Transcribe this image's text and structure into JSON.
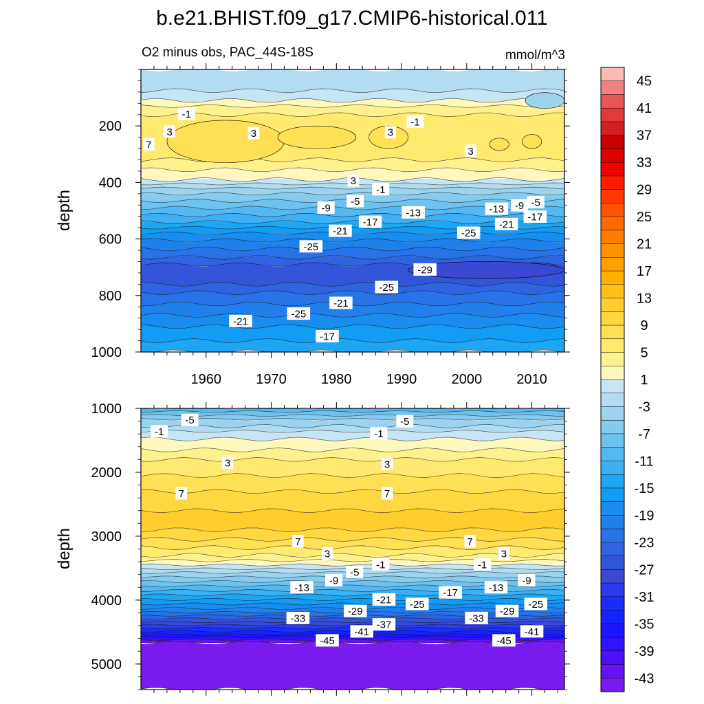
{
  "figure": {
    "title": "b.e21.BHIST.f09_g17.CMIP6-historical.011",
    "subtitle_left": "O2 minus obs, PAC_44S-18S",
    "subtitle_right": "mmol/m^3"
  },
  "chart_data": [
    {
      "type": "heatmap",
      "panel": "upper",
      "ylabel": "depth",
      "ylim": [
        1000,
        0
      ],
      "yticks": [
        200,
        400,
        600,
        800,
        1000
      ],
      "xlim": [
        1950,
        2015
      ],
      "xticks": [
        1960,
        1970,
        1980,
        1990,
        2000,
        2010
      ],
      "bands": [
        {
          "d0": 0,
          "d1": 75,
          "v": -3
        },
        {
          "d0": 75,
          "d1": 110,
          "v": -1
        },
        {
          "d0": 110,
          "d1": 130,
          "v": 1
        },
        {
          "d0": 130,
          "d1": 160,
          "v": 3
        },
        {
          "d0": 160,
          "d1": 320,
          "v": 5
        },
        {
          "d0": 320,
          "d1": 355,
          "v": 3
        },
        {
          "d0": 355,
          "d1": 390,
          "v": 1
        },
        {
          "d0": 390,
          "d1": 405,
          "v": -1
        },
        {
          "d0": 405,
          "d1": 420,
          "v": -3
        },
        {
          "d0": 420,
          "d1": 440,
          "v": -5
        },
        {
          "d0": 440,
          "d1": 465,
          "v": -7
        },
        {
          "d0": 465,
          "d1": 490,
          "v": -9
        },
        {
          "d0": 490,
          "d1": 515,
          "v": -11
        },
        {
          "d0": 515,
          "d1": 540,
          "v": -13
        },
        {
          "d0": 540,
          "d1": 560,
          "v": -15
        },
        {
          "d0": 560,
          "d1": 580,
          "v": -17
        },
        {
          "d0": 580,
          "d1": 605,
          "v": -19
        },
        {
          "d0": 605,
          "d1": 635,
          "v": -21
        },
        {
          "d0": 635,
          "d1": 665,
          "v": -23
        },
        {
          "d0": 665,
          "d1": 690,
          "v": -25
        },
        {
          "d0": 690,
          "d1": 760,
          "v": -27
        },
        {
          "d0": 760,
          "d1": 790,
          "v": -25
        },
        {
          "d0": 790,
          "d1": 830,
          "v": -23
        },
        {
          "d0": 830,
          "d1": 870,
          "v": -21
        },
        {
          "d0": 870,
          "d1": 910,
          "v": -19
        },
        {
          "d0": 910,
          "d1": 960,
          "v": -17
        },
        {
          "d0": 960,
          "d1": 1000,
          "v": -15
        }
      ],
      "blobs": [
        {
          "x": 1963,
          "d": 255,
          "rx": 9,
          "rd": 75,
          "v": 7
        },
        {
          "x": 1977,
          "d": 240,
          "rx": 6,
          "rd": 40,
          "v": 7
        },
        {
          "x": 1988,
          "d": 240,
          "rx": 3,
          "rd": 40,
          "v": 7
        },
        {
          "x": 2005,
          "d": 265,
          "rx": 1.5,
          "rd": 22,
          "v": 7
        },
        {
          "x": 2010,
          "d": 255,
          "rx": 1.5,
          "rd": 25,
          "v": 7
        },
        {
          "x": 2003,
          "d": 710,
          "rx": 12,
          "rd": 30,
          "v": -29
        },
        {
          "x": 2012,
          "d": 110,
          "rx": 3,
          "rd": 28,
          "v": -5
        }
      ],
      "labels": [
        {
          "text": "-1",
          "x": 1957,
          "d": 157
        },
        {
          "text": "3",
          "x": 1954.4,
          "d": 220
        },
        {
          "text": "7",
          "x": 1951.2,
          "d": 265
        },
        {
          "text": "3",
          "x": 1967.3,
          "d": 225
        },
        {
          "text": "-1",
          "x": 1992.1,
          "d": 185
        },
        {
          "text": "3",
          "x": 1988.3,
          "d": 222
        },
        {
          "text": "3",
          "x": 2000.6,
          "d": 288
        },
        {
          "text": "3",
          "x": 1982.6,
          "d": 393
        },
        {
          "text": "-1",
          "x": 1986.8,
          "d": 424
        },
        {
          "text": "-5",
          "x": 1982.9,
          "d": 466
        },
        {
          "text": "-9",
          "x": 1978.4,
          "d": 489
        },
        {
          "text": "-13",
          "x": 1991.8,
          "d": 506
        },
        {
          "text": "-17",
          "x": 1985.2,
          "d": 539
        },
        {
          "text": "-21",
          "x": 1980.6,
          "d": 571
        },
        {
          "text": "-25",
          "x": 1976.1,
          "d": 626
        },
        {
          "text": "-13",
          "x": 2004.6,
          "d": 493
        },
        {
          "text": "-9",
          "x": 2008.1,
          "d": 481
        },
        {
          "text": "-5",
          "x": 2010.6,
          "d": 470
        },
        {
          "text": "-17",
          "x": 2010.5,
          "d": 521
        },
        {
          "text": "-21",
          "x": 2006.1,
          "d": 547
        },
        {
          "text": "-25",
          "x": 2000.3,
          "d": 578
        },
        {
          "text": "-29",
          "x": 1993.6,
          "d": 708
        },
        {
          "text": "-25",
          "x": 1987.7,
          "d": 770
        },
        {
          "text": "-21",
          "x": 1980.7,
          "d": 826
        },
        {
          "text": "-25",
          "x": 1974.2,
          "d": 864
        },
        {
          "text": "-21",
          "x": 1965.3,
          "d": 890
        },
        {
          "text": "-17",
          "x": 1978.6,
          "d": 944
        }
      ]
    },
    {
      "type": "heatmap",
      "panel": "lower",
      "ylabel": "depth",
      "ylim": [
        5400,
        1000
      ],
      "yticks": [
        1000,
        2000,
        3000,
        4000,
        5000
      ],
      "xlim": [
        1950,
        2015
      ],
      "bands": [
        {
          "d0": 1000,
          "d1": 1050,
          "v": -11
        },
        {
          "d0": 1050,
          "d1": 1110,
          "v": -9
        },
        {
          "d0": 1110,
          "d1": 1170,
          "v": -7
        },
        {
          "d0": 1170,
          "d1": 1280,
          "v": -5
        },
        {
          "d0": 1280,
          "d1": 1360,
          "v": -3
        },
        {
          "d0": 1360,
          "d1": 1480,
          "v": -1
        },
        {
          "d0": 1480,
          "d1": 1650,
          "v": 1
        },
        {
          "d0": 1650,
          "d1": 1800,
          "v": 3
        },
        {
          "d0": 1800,
          "d1": 2050,
          "v": 5
        },
        {
          "d0": 2050,
          "d1": 2300,
          "v": 7
        },
        {
          "d0": 2300,
          "d1": 2600,
          "v": 9
        },
        {
          "d0": 2600,
          "d1": 2900,
          "v": 11
        },
        {
          "d0": 2900,
          "d1": 3050,
          "v": 9
        },
        {
          "d0": 3050,
          "d1": 3180,
          "v": 7
        },
        {
          "d0": 3180,
          "d1": 3300,
          "v": 5
        },
        {
          "d0": 3300,
          "d1": 3380,
          "v": 3
        },
        {
          "d0": 3380,
          "d1": 3450,
          "v": 1
        },
        {
          "d0": 3450,
          "d1": 3510,
          "v": -1
        },
        {
          "d0": 3510,
          "d1": 3570,
          "v": -3
        },
        {
          "d0": 3570,
          "d1": 3640,
          "v": -5
        },
        {
          "d0": 3640,
          "d1": 3710,
          "v": -7
        },
        {
          "d0": 3710,
          "d1": 3780,
          "v": -9
        },
        {
          "d0": 3780,
          "d1": 3850,
          "v": -11
        },
        {
          "d0": 3850,
          "d1": 3920,
          "v": -13
        },
        {
          "d0": 3920,
          "d1": 3990,
          "v": -15
        },
        {
          "d0": 3990,
          "d1": 4060,
          "v": -17
        },
        {
          "d0": 4060,
          "d1": 4130,
          "v": -19
        },
        {
          "d0": 4130,
          "d1": 4190,
          "v": -21
        },
        {
          "d0": 4190,
          "d1": 4240,
          "v": -23
        },
        {
          "d0": 4240,
          "d1": 4290,
          "v": -25
        },
        {
          "d0": 4290,
          "d1": 4340,
          "v": -27
        },
        {
          "d0": 4340,
          "d1": 4390,
          "v": -29
        },
        {
          "d0": 4390,
          "d1": 4440,
          "v": -31
        },
        {
          "d0": 4440,
          "d1": 4490,
          "v": -33
        },
        {
          "d0": 4490,
          "d1": 4540,
          "v": -35
        },
        {
          "d0": 4540,
          "d1": 4580,
          "v": -37
        },
        {
          "d0": 4580,
          "d1": 4620,
          "v": -39
        },
        {
          "d0": 4620,
          "d1": 4660,
          "v": -43
        },
        {
          "d0": 4660,
          "d1": 5400,
          "v": -47
        }
      ],
      "labels": [
        {
          "text": "-5",
          "x": 1957.5,
          "d": 1180
        },
        {
          "text": "-1",
          "x": 1952.8,
          "d": 1360
        },
        {
          "text": "-5",
          "x": 1990.5,
          "d": 1200
        },
        {
          "text": "-1",
          "x": 1986.5,
          "d": 1390
        },
        {
          "text": "3",
          "x": 1963.3,
          "d": 1850
        },
        {
          "text": "3",
          "x": 1987.8,
          "d": 1870
        },
        {
          "text": "7",
          "x": 1956.2,
          "d": 2330
        },
        {
          "text": "7",
          "x": 1987.8,
          "d": 2330
        },
        {
          "text": "7",
          "x": 1974.1,
          "d": 3080
        },
        {
          "text": "7",
          "x": 2000.5,
          "d": 3080
        },
        {
          "text": "3",
          "x": 1978.6,
          "d": 3270
        },
        {
          "text": "3",
          "x": 2005.7,
          "d": 3270
        },
        {
          "text": "-1",
          "x": 1986.8,
          "d": 3440
        },
        {
          "text": "-1",
          "x": 2002.4,
          "d": 3440
        },
        {
          "text": "-5",
          "x": 1982.8,
          "d": 3560
        },
        {
          "text": "-9",
          "x": 1979.6,
          "d": 3690
        },
        {
          "text": "-9",
          "x": 2009.2,
          "d": 3690
        },
        {
          "text": "-13",
          "x": 1974.7,
          "d": 3800
        },
        {
          "text": "-13",
          "x": 2004.5,
          "d": 3800
        },
        {
          "text": "-17",
          "x": 1997.5,
          "d": 3880
        },
        {
          "text": "-21",
          "x": 1987.3,
          "d": 3990
        },
        {
          "text": "-25",
          "x": 1992.4,
          "d": 4060
        },
        {
          "text": "-25",
          "x": 2010.6,
          "d": 4060
        },
        {
          "text": "-29",
          "x": 1982.9,
          "d": 4170
        },
        {
          "text": "-29",
          "x": 2006.2,
          "d": 4170
        },
        {
          "text": "-33",
          "x": 1974.1,
          "d": 4280
        },
        {
          "text": "-33",
          "x": 2001.5,
          "d": 4280
        },
        {
          "text": "-37",
          "x": 1987.3,
          "d": 4380
        },
        {
          "text": "-41",
          "x": 1983.9,
          "d": 4490
        },
        {
          "text": "-41",
          "x": 2010.0,
          "d": 4490
        },
        {
          "text": "-45",
          "x": 1978.6,
          "d": 4630
        },
        {
          "text": "-45",
          "x": 2005.7,
          "d": 4630
        }
      ]
    }
  ],
  "colorbar": {
    "levels": [
      45,
      43,
      41,
      39,
      37,
      35,
      33,
      31,
      29,
      27,
      25,
      23,
      21,
      19,
      17,
      15,
      13,
      11,
      9,
      7,
      5,
      3,
      1,
      -1,
      -3,
      -5,
      -7,
      -9,
      -11,
      -13,
      -15,
      -17,
      -19,
      -21,
      -23,
      -25,
      -27,
      -29,
      -31,
      -33,
      -35,
      -37,
      -39,
      -41,
      -43,
      -45
    ],
    "labels": [
      "45",
      "41",
      "37",
      "33",
      "29",
      "25",
      "21",
      "17",
      "13",
      "9",
      "5",
      "1",
      "-3",
      "-7",
      "-11",
      "-15",
      "-19",
      "-23",
      "-27",
      "-31",
      "-35",
      "-39",
      "-43"
    ],
    "colors": [
      "#fdb8b8",
      "#f28080",
      "#e85757",
      "#e03a3a",
      "#d42020",
      "#c80000",
      "#dc0000",
      "#f00000",
      "#ff1a00",
      "#ff3a00",
      "#ff5500",
      "#ff6a00",
      "#ff7e00",
      "#ff9200",
      "#ffa200",
      "#ffb000",
      "#ffc01a",
      "#ffce2e",
      "#ffd740",
      "#ffe055",
      "#ffe96e",
      "#fff18e",
      "#fff8bc",
      "#c5e4f4",
      "#b2dcf0",
      "#9cd3ef",
      "#85cbf0",
      "#6dc2f0",
      "#55b9f1",
      "#3cb0f2",
      "#1ea6f3",
      "#129cf3",
      "#1a8ef0",
      "#2080ec",
      "#2872e6",
      "#2e64e0",
      "#3356d8",
      "#3a48d2",
      "#2a3aee",
      "#1a2cff",
      "#1422ff",
      "#1a14ff",
      "#3312ff",
      "#4b10f8",
      "#6412f0",
      "#7a1cf0"
    ]
  }
}
